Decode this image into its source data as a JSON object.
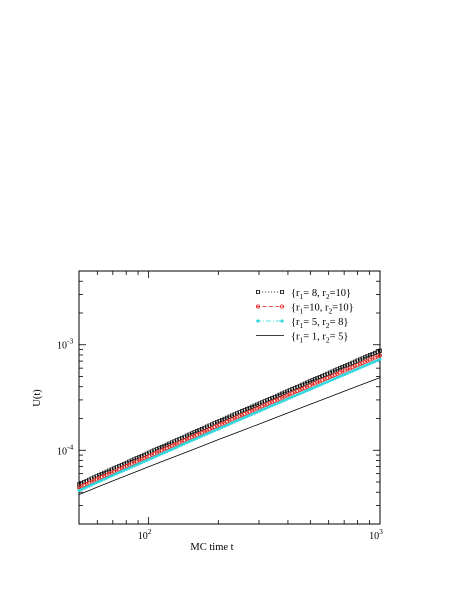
{
  "chart_data": {
    "type": "scatter",
    "xlabel": "MC time t",
    "ylabel": "U(t)",
    "xscale": "log",
    "yscale": "log",
    "xlim": [
      50,
      1000
    ],
    "ylim": [
      2e-05,
      0.005
    ],
    "grid": false,
    "legend_position": "top-right",
    "x_tick_labels": [
      {
        "value": 100,
        "mantissa": "10",
        "exp": "2"
      },
      {
        "value": 1000,
        "mantissa": "10",
        "exp": "3"
      }
    ],
    "y_tick_labels": [
      {
        "value": 0.0001,
        "mantissa": "10",
        "exp": "-4"
      },
      {
        "value": 0.001,
        "mantissa": "10",
        "exp": "-3"
      }
    ],
    "series": [
      {
        "name": "{r1= 8, r2=10}",
        "legend": {
          "open": "{r",
          "s1": "1",
          "m1": "= 8, r",
          "s2": "2",
          "m2": "=10}"
        },
        "color": "#000000",
        "marker": "square-open",
        "line": "dotted",
        "x": [
          50,
          60,
          70,
          80,
          100,
          120,
          150,
          200,
          250,
          300,
          400,
          500,
          600,
          700,
          800,
          1000
        ],
        "y": [
          4.75e-05,
          5.71e-05,
          6.65e-05,
          7.58e-05,
          9.45e-05,
          0.000113,
          0.000141,
          0.000187,
          0.000232,
          0.000276,
          0.000364,
          0.000452,
          0.000538,
          0.000624,
          0.000709,
          0.000878
        ]
      },
      {
        "name": "{r1=10, r2=10}",
        "legend": {
          "open": "{r",
          "s1": "1",
          "m1": "=10, r",
          "s2": "2",
          "m2": "=10}"
        },
        "color": "#e8231e",
        "marker": "circle-open",
        "line": "dashed",
        "x": [
          50,
          60,
          70,
          80,
          100,
          120,
          150,
          200,
          250,
          300,
          400,
          500,
          600,
          700,
          800,
          1000
        ],
        "y": [
          4.45e-05,
          5.33e-05,
          6.2e-05,
          7.06e-05,
          8.77e-05,
          0.000105,
          0.00013,
          0.000172,
          0.000213,
          0.000253,
          0.000333,
          0.000412,
          0.000489,
          0.000566,
          0.000642,
          0.000793
        ]
      },
      {
        "name": "{r1= 5, r2= 8}",
        "legend": {
          "open": "{r",
          "s1": "1",
          "m1": "= 5, r",
          "s2": "2",
          "m2": "= 8}"
        },
        "color": "#2ad6dd",
        "marker": "star",
        "line": "dashdot",
        "x": [
          50,
          60,
          70,
          80,
          100,
          120,
          150,
          200,
          250,
          300,
          400,
          500,
          600,
          700,
          800,
          1000
        ],
        "y": [
          4.15e-05,
          4.97e-05,
          5.78e-05,
          6.58e-05,
          8.15e-05,
          9.72e-05,
          0.000121,
          0.000159,
          0.000197,
          0.000234,
          0.000307,
          0.000379,
          0.00045,
          0.00052,
          0.00059,
          0.000727
        ]
      },
      {
        "name": "{r1= 1, r2= 5}",
        "legend": {
          "open": "{r",
          "s1": "1",
          "m1": "= 1, r",
          "s2": "2",
          "m2": "= 5}"
        },
        "color": "#000000",
        "marker": "none",
        "line": "solid",
        "x": [
          50,
          60,
          70,
          80,
          100,
          120,
          150,
          200,
          250,
          300,
          400,
          500,
          600,
          700,
          800,
          1000
        ],
        "y": [
          3.8e-05,
          4.47e-05,
          5.12e-05,
          5.75e-05,
          6.97e-05,
          8.15e-05,
          9.85e-05,
          0.000126,
          0.000152,
          0.000177,
          0.000226,
          0.000273,
          0.000318,
          0.000362,
          0.000405,
          0.000488
        ]
      }
    ]
  }
}
